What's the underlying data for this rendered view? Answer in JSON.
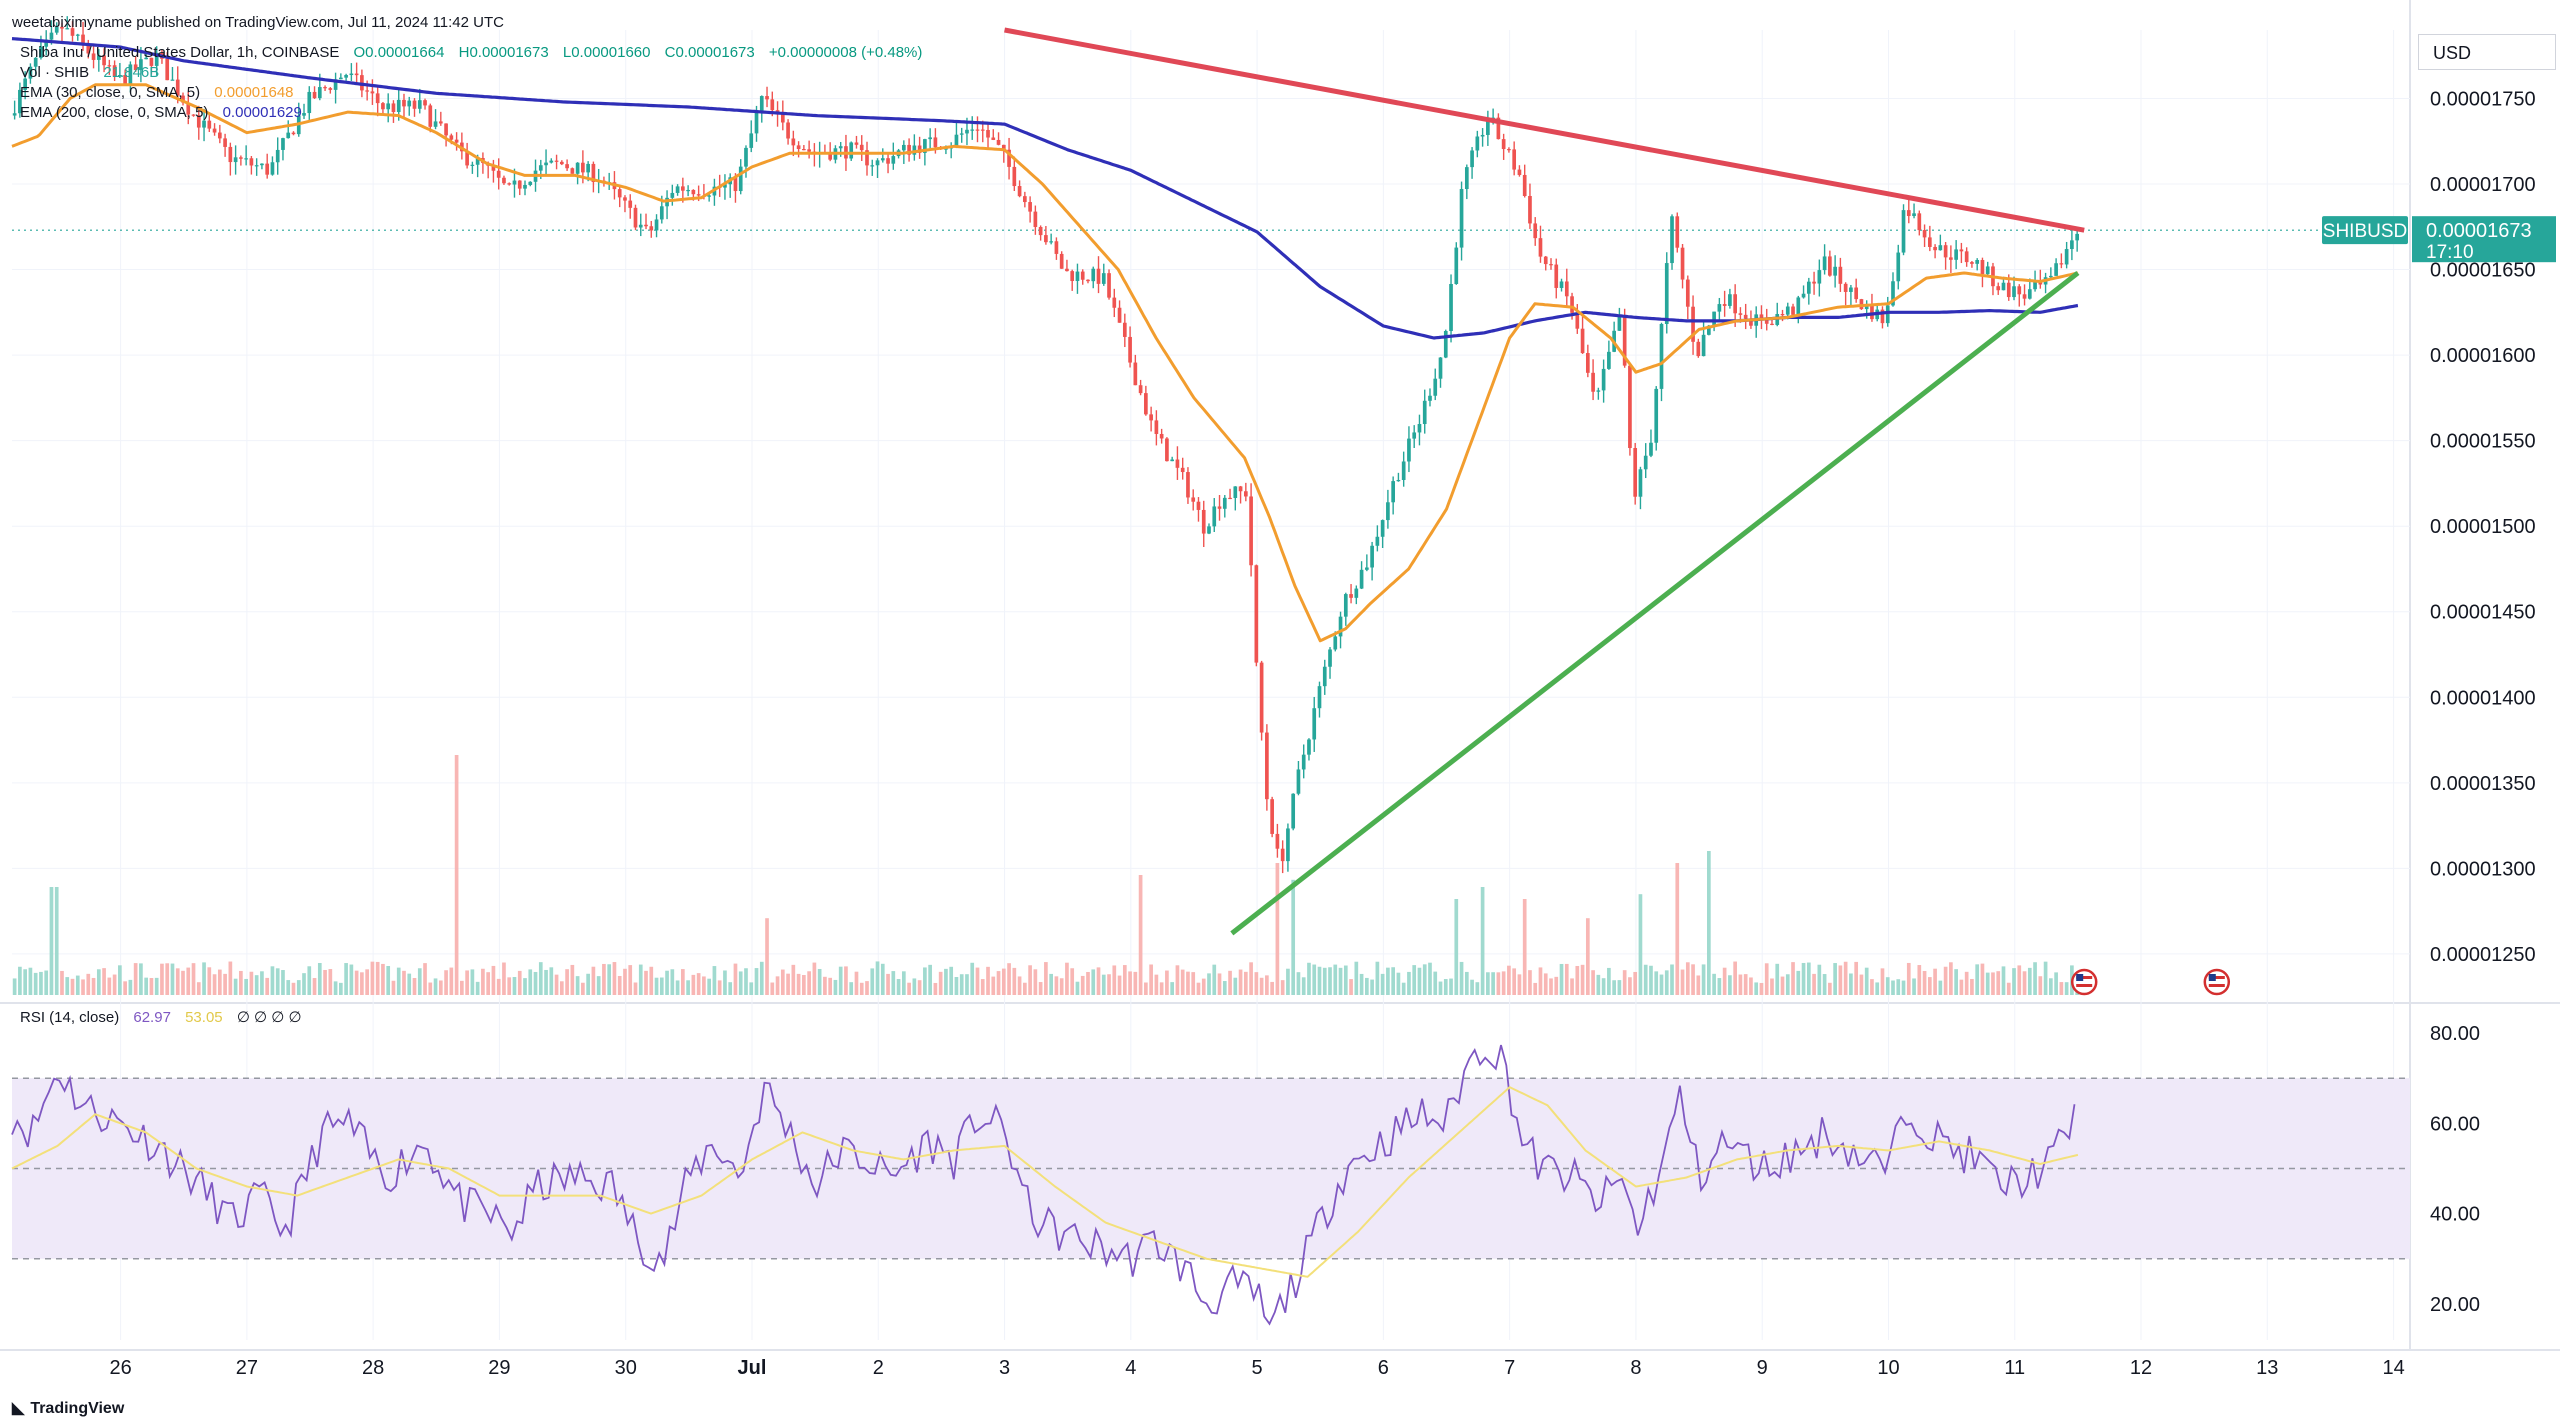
{
  "published": "weetabiximyname published on TradingView.com, Jul 11, 2024 11:42 UTC",
  "branding": "TradingView",
  "currency_button": "USD",
  "legend": {
    "symbol_line": "Shiba Inu / United States Dollar, 1h, COINBASE",
    "ohlc": {
      "o": "O0.00001664",
      "h": "H0.00001673",
      "l": "L0.00001660",
      "c": "C0.00001673",
      "chg": "+0.00000008 (+0.48%)"
    },
    "vol_label": "Vol · SHIB",
    "vol_value": "21.846B",
    "ema30_label": "EMA (30, close, 0, SMA, 5)",
    "ema30_value": "0.00001648",
    "ema200_label": "EMA (200, close, 0, SMA, 5)",
    "ema200_value": "0.00001629",
    "rsi_label": "RSI (14, close)",
    "rsi_value": "62.97",
    "rsi_ma_value": "53.05",
    "rsi_extra": "∅ ∅ ∅ ∅"
  },
  "price_tag": {
    "symbol": "SHIBUSD",
    "price": "0.00001673",
    "countdown": "17:10"
  },
  "colors": {
    "up": "#26a69a",
    "down": "#ef5350",
    "ema30": "#f29d2e",
    "ema200": "#2f2fb7",
    "resistance": "#e04856",
    "support": "#4caf50",
    "rsi": "#7e57c2",
    "rsi_ma": "#f3e07a",
    "rsi_band": "#efe9f9"
  },
  "chart_data": [
    {
      "type": "candlestick",
      "title": "Shiba Inu / United States Dollar, 1h, COINBASE",
      "x_ticks": [
        "26",
        "27",
        "28",
        "29",
        "30",
        "Jul",
        "2",
        "3",
        "4",
        "5",
        "6",
        "7",
        "8",
        "9",
        "10",
        "11",
        "12",
        "13",
        "14"
      ],
      "x_tick_days": [
        26,
        27,
        28,
        29,
        30,
        31,
        32,
        33,
        34,
        35,
        36,
        37,
        38,
        39,
        40,
        41,
        42,
        43,
        44
      ],
      "x_range_days": [
        25.14,
        44.13
      ],
      "y_ticks": [
        "0.00001250",
        "0.00001300",
        "0.00001350",
        "0.00001400",
        "0.00001450",
        "0.00001500",
        "0.00001550",
        "0.00001600",
        "0.00001650",
        "0.00001700",
        "0.00001750"
      ],
      "y_tick_values": [
        1250,
        1300,
        1350,
        1400,
        1450,
        1500,
        1550,
        1600,
        1650,
        1700,
        1750
      ],
      "y_range": [
        1226,
        1790
      ],
      "y_unit_note": "values in units of 1e-8 USD",
      "last_close": 1673,
      "price_path_anchors": [
        [
          25.14,
          1740
        ],
        [
          25.35,
          1772
        ],
        [
          25.55,
          1792
        ],
        [
          25.7,
          1782
        ],
        [
          26.0,
          1760
        ],
        [
          26.3,
          1775
        ],
        [
          26.6,
          1740
        ],
        [
          26.9,
          1715
        ],
        [
          27.2,
          1708
        ],
        [
          27.5,
          1748
        ],
        [
          27.8,
          1765
        ],
        [
          28.1,
          1745
        ],
        [
          28.4,
          1745
        ],
        [
          28.7,
          1718
        ],
        [
          28.9,
          1710
        ],
        [
          29.1,
          1695
        ],
        [
          29.3,
          1708
        ],
        [
          29.5,
          1712
        ],
        [
          29.8,
          1705
        ],
        [
          30.0,
          1688
        ],
        [
          30.2,
          1670
        ],
        [
          30.4,
          1698
        ],
        [
          30.7,
          1697
        ],
        [
          30.9,
          1700
        ],
        [
          31.1,
          1750
        ],
        [
          31.3,
          1730
        ],
        [
          31.5,
          1718
        ],
        [
          31.8,
          1720
        ],
        [
          32.0,
          1712
        ],
        [
          32.3,
          1722
        ],
        [
          32.6,
          1725
        ],
        [
          32.8,
          1735
        ],
        [
          33.0,
          1718
        ],
        [
          33.2,
          1688
        ],
        [
          33.5,
          1648
        ],
        [
          33.8,
          1645
        ],
        [
          34.0,
          1600
        ],
        [
          34.2,
          1555
        ],
        [
          34.45,
          1525
        ],
        [
          34.6,
          1500
        ],
        [
          34.75,
          1518
        ],
        [
          34.95,
          1520
        ],
        [
          35.0,
          1430
        ],
        [
          35.1,
          1340
        ],
        [
          35.2,
          1300
        ],
        [
          35.35,
          1355
        ],
        [
          35.5,
          1400
        ],
        [
          35.7,
          1455
        ],
        [
          35.9,
          1480
        ],
        [
          36.1,
          1525
        ],
        [
          36.3,
          1560
        ],
        [
          36.5,
          1605
        ],
        [
          36.65,
          1700
        ],
        [
          36.85,
          1740
        ],
        [
          36.95,
          1725
        ],
        [
          37.1,
          1705
        ],
        [
          37.25,
          1660
        ],
        [
          37.5,
          1630
        ],
        [
          37.7,
          1570
        ],
        [
          37.9,
          1625
        ],
        [
          38.0,
          1515
        ],
        [
          38.15,
          1555
        ],
        [
          38.3,
          1680
        ],
        [
          38.5,
          1600
        ],
        [
          38.7,
          1635
        ],
        [
          39.0,
          1618
        ],
        [
          39.3,
          1628
        ],
        [
          39.5,
          1655
        ],
        [
          39.8,
          1630
        ],
        [
          40.0,
          1620
        ],
        [
          40.15,
          1688
        ],
        [
          40.4,
          1662
        ],
        [
          40.7,
          1655
        ],
        [
          40.9,
          1640
        ],
        [
          41.1,
          1635
        ],
        [
          41.3,
          1642
        ],
        [
          41.5,
          1672
        ]
      ],
      "ema30_anchors": [
        [
          25.14,
          1722
        ],
        [
          25.35,
          1728
        ],
        [
          25.6,
          1750
        ],
        [
          25.8,
          1758
        ],
        [
          26.2,
          1758
        ],
        [
          26.6,
          1745
        ],
        [
          27.0,
          1730
        ],
        [
          27.4,
          1735
        ],
        [
          27.8,
          1742
        ],
        [
          28.2,
          1740
        ],
        [
          28.5,
          1730
        ],
        [
          28.9,
          1712
        ],
        [
          29.2,
          1705
        ],
        [
          29.6,
          1705
        ],
        [
          30.0,
          1698
        ],
        [
          30.3,
          1690
        ],
        [
          30.6,
          1692
        ],
        [
          31.0,
          1710
        ],
        [
          31.3,
          1718
        ],
        [
          31.8,
          1718
        ],
        [
          32.2,
          1718
        ],
        [
          32.6,
          1722
        ],
        [
          33.0,
          1720
        ],
        [
          33.3,
          1700
        ],
        [
          33.6,
          1675
        ],
        [
          33.9,
          1650
        ],
        [
          34.2,
          1610
        ],
        [
          34.5,
          1575
        ],
        [
          34.9,
          1540
        ],
        [
          35.1,
          1505
        ],
        [
          35.3,
          1465
        ],
        [
          35.5,
          1433
        ],
        [
          35.7,
          1440
        ],
        [
          35.9,
          1455
        ],
        [
          36.2,
          1475
        ],
        [
          36.5,
          1510
        ],
        [
          36.8,
          1570
        ],
        [
          37.0,
          1610
        ],
        [
          37.2,
          1630
        ],
        [
          37.5,
          1628
        ],
        [
          37.8,
          1610
        ],
        [
          38.0,
          1590
        ],
        [
          38.2,
          1595
        ],
        [
          38.5,
          1615
        ],
        [
          38.8,
          1620
        ],
        [
          39.2,
          1622
        ],
        [
          39.6,
          1628
        ],
        [
          40.0,
          1630
        ],
        [
          40.3,
          1645
        ],
        [
          40.6,
          1648
        ],
        [
          40.9,
          1645
        ],
        [
          41.2,
          1643
        ],
        [
          41.5,
          1648
        ]
      ],
      "ema200_anchors": [
        [
          25.14,
          1785
        ],
        [
          26.0,
          1780
        ],
        [
          26.5,
          1772
        ],
        [
          27.5,
          1762
        ],
        [
          28.5,
          1753
        ],
        [
          29.5,
          1748
        ],
        [
          30.5,
          1745
        ],
        [
          31.5,
          1740
        ],
        [
          32.5,
          1737
        ],
        [
          33.0,
          1735
        ],
        [
          33.5,
          1720
        ],
        [
          34.0,
          1708
        ],
        [
          34.5,
          1690
        ],
        [
          35.0,
          1672
        ],
        [
          35.5,
          1640
        ],
        [
          36.0,
          1617
        ],
        [
          36.4,
          1610
        ],
        [
          36.8,
          1613
        ],
        [
          37.2,
          1620
        ],
        [
          37.6,
          1625
        ],
        [
          38.0,
          1622
        ],
        [
          38.4,
          1620
        ],
        [
          38.8,
          1620
        ],
        [
          39.2,
          1622
        ],
        [
          39.6,
          1622
        ],
        [
          40.0,
          1625
        ],
        [
          40.4,
          1625
        ],
        [
          40.8,
          1626
        ],
        [
          41.2,
          1625
        ],
        [
          41.5,
          1629
        ]
      ],
      "resistance_line": [
        [
          33.0,
          1790
        ],
        [
          41.55,
          1673
        ]
      ],
      "support_line": [
        [
          34.8,
          1262
        ],
        [
          41.5,
          1648
        ]
      ],
      "volume_spikes": [
        [
          28.65,
          1.0
        ],
        [
          25.45,
          0.45
        ],
        [
          36.75,
          0.45
        ],
        [
          37.1,
          0.4
        ],
        [
          38.3,
          0.55
        ],
        [
          38.55,
          0.6
        ],
        [
          34.05,
          0.5
        ],
        [
          35.15,
          0.55
        ],
        [
          35.25,
          0.48
        ],
        [
          36.55,
          0.4
        ],
        [
          38.0,
          0.42
        ],
        [
          31.1,
          0.32
        ],
        [
          37.6,
          0.32
        ]
      ]
    },
    {
      "type": "line",
      "title": "RSI (14, close)",
      "y_ticks": [
        "20.00",
        "40.00",
        "60.00",
        "80.00"
      ],
      "y_tick_values": [
        20,
        40,
        60,
        80
      ],
      "y_range": [
        12,
        84
      ],
      "bands": [
        30,
        50,
        70
      ],
      "last_value": 62.97,
      "rsi_ma_last": 53.05,
      "rsi_anchors": [
        [
          25.14,
          62
        ],
        [
          25.3,
          58
        ],
        [
          25.5,
          72
        ],
        [
          25.7,
          64
        ],
        [
          26.0,
          60
        ],
        [
          26.3,
          55
        ],
        [
          26.6,
          47
        ],
        [
          26.9,
          38
        ],
        [
          27.1,
          44
        ],
        [
          27.3,
          36
        ],
        [
          27.6,
          58
        ],
        [
          27.8,
          60
        ],
        [
          28.1,
          48
        ],
        [
          28.4,
          56
        ],
        [
          28.7,
          42
        ],
        [
          28.9,
          40
        ],
        [
          29.1,
          36
        ],
        [
          29.3,
          46
        ],
        [
          29.6,
          48
        ],
        [
          29.9,
          46
        ],
        [
          30.1,
          34
        ],
        [
          30.3,
          30
        ],
        [
          30.5,
          48
        ],
        [
          30.7,
          56
        ],
        [
          30.9,
          48
        ],
        [
          31.1,
          68
        ],
        [
          31.3,
          58
        ],
        [
          31.5,
          46
        ],
        [
          31.7,
          54
        ],
        [
          31.9,
          52
        ],
        [
          32.1,
          48
        ],
        [
          32.4,
          56
        ],
        [
          32.6,
          52
        ],
        [
          32.8,
          62
        ],
        [
          33.0,
          58
        ],
        [
          33.2,
          40
        ],
        [
          33.4,
          36
        ],
        [
          33.6,
          34
        ],
        [
          33.8,
          32
        ],
        [
          34.0,
          30
        ],
        [
          34.2,
          34
        ],
        [
          34.45,
          27
        ],
        [
          34.6,
          20
        ],
        [
          34.8,
          24
        ],
        [
          35.0,
          22
        ],
        [
          35.1,
          14
        ],
        [
          35.2,
          20
        ],
        [
          35.35,
          28
        ],
        [
          35.5,
          38
        ],
        [
          35.7,
          50
        ],
        [
          35.9,
          54
        ],
        [
          36.1,
          58
        ],
        [
          36.3,
          62
        ],
        [
          36.5,
          60
        ],
        [
          36.65,
          72
        ],
        [
          36.8,
          78
        ],
        [
          36.95,
          74
        ],
        [
          37.1,
          56
        ],
        [
          37.25,
          50
        ],
        [
          37.5,
          48
        ],
        [
          37.7,
          42
        ],
        [
          37.9,
          48
        ],
        [
          38.0,
          36
        ],
        [
          38.2,
          50
        ],
        [
          38.35,
          66
        ],
        [
          38.5,
          48
        ],
        [
          38.7,
          56
        ],
        [
          39.0,
          50
        ],
        [
          39.3,
          54
        ],
        [
          39.5,
          58
        ],
        [
          39.8,
          52
        ],
        [
          40.0,
          50
        ],
        [
          40.15,
          64
        ],
        [
          40.4,
          56
        ],
        [
          40.7,
          52
        ],
        [
          40.9,
          46
        ],
        [
          41.1,
          48
        ],
        [
          41.3,
          52
        ],
        [
          41.5,
          63
        ]
      ],
      "rsi_ma_anchors": [
        [
          25.14,
          50
        ],
        [
          25.5,
          55
        ],
        [
          25.8,
          62
        ],
        [
          26.2,
          58
        ],
        [
          26.6,
          50
        ],
        [
          27.0,
          46
        ],
        [
          27.4,
          44
        ],
        [
          27.8,
          48
        ],
        [
          28.2,
          52
        ],
        [
          28.6,
          50
        ],
        [
          29.0,
          44
        ],
        [
          29.4,
          44
        ],
        [
          29.8,
          44
        ],
        [
          30.2,
          40
        ],
        [
          30.6,
          44
        ],
        [
          31.0,
          52
        ],
        [
          31.4,
          58
        ],
        [
          31.8,
          54
        ],
        [
          32.2,
          52
        ],
        [
          32.6,
          54
        ],
        [
          33.0,
          55
        ],
        [
          33.4,
          46
        ],
        [
          33.8,
          38
        ],
        [
          34.2,
          34
        ],
        [
          34.6,
          30
        ],
        [
          35.0,
          28
        ],
        [
          35.4,
          26
        ],
        [
          35.8,
          36
        ],
        [
          36.2,
          48
        ],
        [
          36.6,
          58
        ],
        [
          37.0,
          68
        ],
        [
          37.3,
          64
        ],
        [
          37.6,
          54
        ],
        [
          38.0,
          46
        ],
        [
          38.4,
          48
        ],
        [
          38.8,
          52
        ],
        [
          39.2,
          54
        ],
        [
          39.6,
          55
        ],
        [
          40.0,
          54
        ],
        [
          40.4,
          56
        ],
        [
          40.8,
          54
        ],
        [
          41.2,
          51
        ],
        [
          41.5,
          53
        ]
      ]
    }
  ]
}
